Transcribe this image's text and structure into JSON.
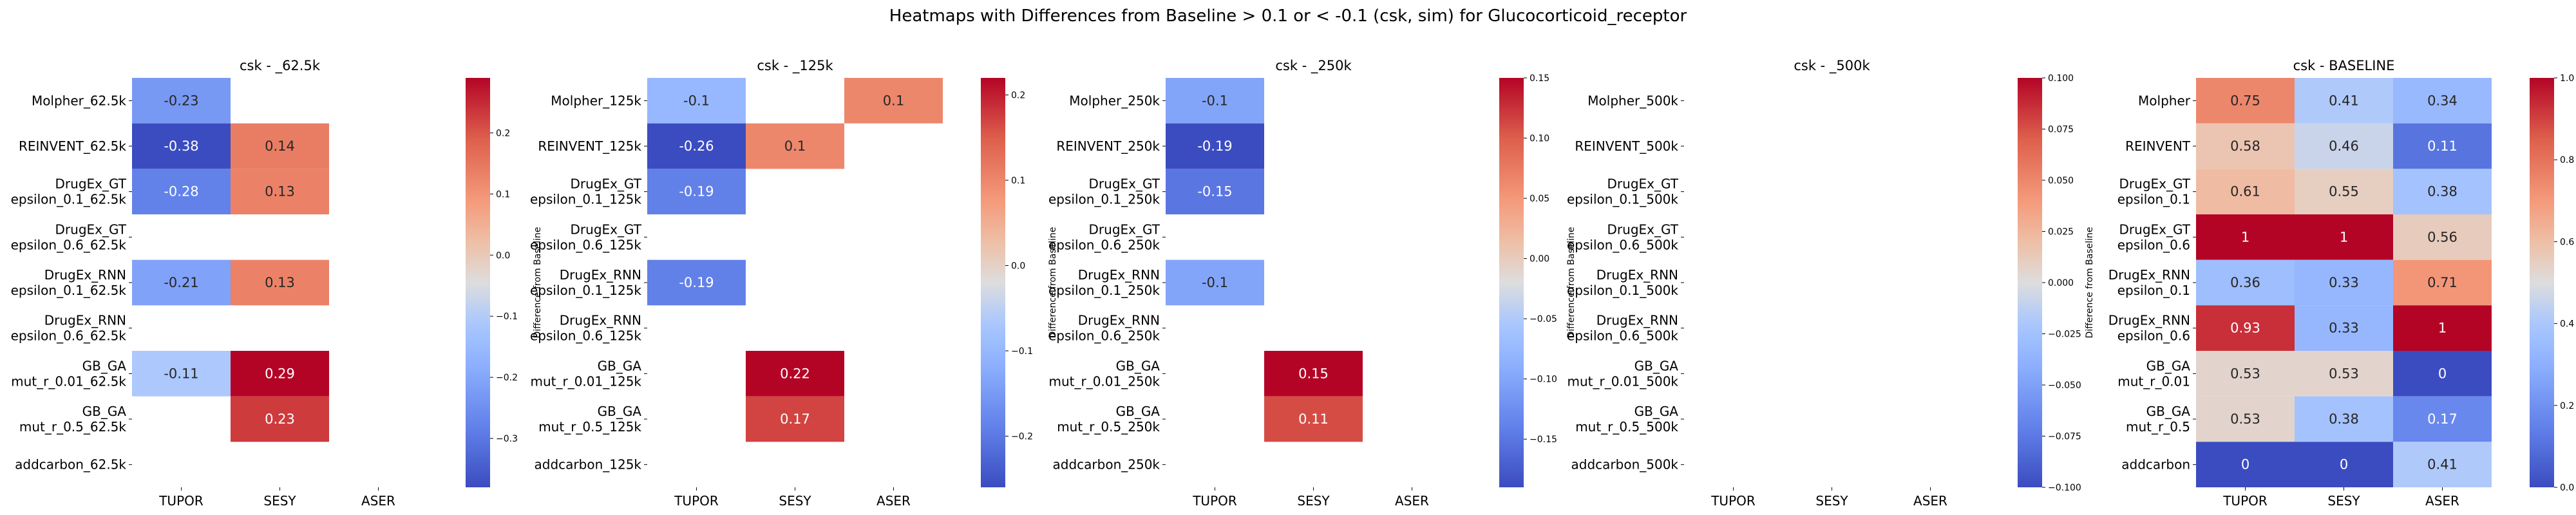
{
  "title": "Heatmaps with Differences from Baseline > 0.1 or < -0.1 (csk, sim) for Glucocorticoid_receptor",
  "colorbar_label": "Difference from Baseline",
  "colormap": "coolwarm",
  "colors": {
    "nan_background": "#ffffff",
    "low": "#3b4cc0",
    "mid": "#dddddd",
    "high": "#b40426"
  },
  "chart_data": [
    {
      "type": "heatmap",
      "title": "csk - _62.5k",
      "columns": [
        "TUPOR",
        "SESY",
        "ASER"
      ],
      "rows": [
        [
          "Molpher_62.5k"
        ],
        [
          "REINVENT_62.5k"
        ],
        [
          "DrugEx_GT",
          "epsilon_0.1_62.5k"
        ],
        [
          "DrugEx_GT",
          "epsilon_0.6_62.5k"
        ],
        [
          "DrugEx_RNN",
          "epsilon_0.1_62.5k"
        ],
        [
          "DrugEx_RNN",
          "epsilon_0.6_62.5k"
        ],
        [
          "GB_GA",
          "mut_r_0.01_62.5k"
        ],
        [
          "GB_GA",
          "mut_r_0.5_62.5k"
        ],
        [
          "addcarbon_62.5k"
        ]
      ],
      "values": [
        [
          -0.23,
          null,
          null
        ],
        [
          -0.38,
          0.14,
          null
        ],
        [
          -0.28,
          0.13,
          null
        ],
        [
          null,
          null,
          null
        ],
        [
          -0.21,
          0.13,
          null
        ],
        [
          null,
          null,
          null
        ],
        [
          -0.11,
          0.29,
          null
        ],
        [
          null,
          0.23,
          null
        ],
        [
          null,
          null,
          null
        ]
      ],
      "vmin": -0.38,
      "vmax": 0.29,
      "colorbar_ticks": [
        -0.3,
        -0.2,
        -0.1,
        0.0,
        0.1,
        0.2
      ],
      "colorbar_tick_labels": [
        "−0.3",
        "−0.2",
        "−0.1",
        "0.0",
        "0.1",
        "0.2"
      ]
    },
    {
      "type": "heatmap",
      "title": "csk - _125k",
      "columns": [
        "TUPOR",
        "SESY",
        "ASER"
      ],
      "rows": [
        [
          "Molpher_125k"
        ],
        [
          "REINVENT_125k"
        ],
        [
          "DrugEx_GT",
          "epsilon_0.1_125k"
        ],
        [
          "DrugEx_GT",
          "epsilon_0.6_125k"
        ],
        [
          "DrugEx_RNN",
          "epsilon_0.1_125k"
        ],
        [
          "DrugEx_RNN",
          "epsilon_0.6_125k"
        ],
        [
          "GB_GA",
          "mut_r_0.01_125k"
        ],
        [
          "GB_GA",
          "mut_r_0.5_125k"
        ],
        [
          "addcarbon_125k"
        ]
      ],
      "values": [
        [
          -0.1,
          null,
          0.1
        ],
        [
          -0.26,
          0.1,
          null
        ],
        [
          -0.19,
          null,
          null
        ],
        [
          null,
          null,
          null
        ],
        [
          -0.19,
          null,
          null
        ],
        [
          null,
          null,
          null
        ],
        [
          null,
          0.22,
          null
        ],
        [
          null,
          0.17,
          null
        ],
        [
          null,
          null,
          null
        ]
      ],
      "vmin": -0.26,
      "vmax": 0.22,
      "colorbar_ticks": [
        -0.2,
        -0.1,
        0.0,
        0.1,
        0.2
      ],
      "colorbar_tick_labels": [
        "−0.2",
        "−0.1",
        "0.0",
        "0.1",
        "0.2"
      ]
    },
    {
      "type": "heatmap",
      "title": "csk - _250k",
      "columns": [
        "TUPOR",
        "SESY",
        "ASER"
      ],
      "rows": [
        [
          "Molpher_250k"
        ],
        [
          "REINVENT_250k"
        ],
        [
          "DrugEx_GT",
          "epsilon_0.1_250k"
        ],
        [
          "DrugEx_GT",
          "epsilon_0.6_250k"
        ],
        [
          "DrugEx_RNN",
          "epsilon_0.1_250k"
        ],
        [
          "DrugEx_RNN",
          "epsilon_0.6_250k"
        ],
        [
          "GB_GA",
          "mut_r_0.01_250k"
        ],
        [
          "GB_GA",
          "mut_r_0.5_250k"
        ],
        [
          "addcarbon_250k"
        ]
      ],
      "values": [
        [
          -0.1,
          null,
          null
        ],
        [
          -0.19,
          null,
          null
        ],
        [
          -0.15,
          null,
          null
        ],
        [
          null,
          null,
          null
        ],
        [
          -0.1,
          null,
          null
        ],
        [
          null,
          null,
          null
        ],
        [
          null,
          0.15,
          null
        ],
        [
          null,
          0.11,
          null
        ],
        [
          null,
          null,
          null
        ]
      ],
      "vmin": -0.19,
      "vmax": 0.15,
      "colorbar_ticks": [
        -0.15,
        -0.1,
        -0.05,
        0.0,
        0.05,
        0.1,
        0.15
      ],
      "colorbar_tick_labels": [
        "−0.15",
        "−0.10",
        "−0.05",
        "0.00",
        "0.05",
        "0.10",
        "0.15"
      ]
    },
    {
      "type": "heatmap",
      "title": "csk - _500k",
      "columns": [
        "TUPOR",
        "SESY",
        "ASER"
      ],
      "rows": [
        [
          "Molpher_500k"
        ],
        [
          "REINVENT_500k"
        ],
        [
          "DrugEx_GT",
          "epsilon_0.1_500k"
        ],
        [
          "DrugEx_GT",
          "epsilon_0.6_500k"
        ],
        [
          "DrugEx_RNN",
          "epsilon_0.1_500k"
        ],
        [
          "DrugEx_RNN",
          "epsilon_0.6_500k"
        ],
        [
          "GB_GA",
          "mut_r_0.01_500k"
        ],
        [
          "GB_GA",
          "mut_r_0.5_500k"
        ],
        [
          "addcarbon_500k"
        ]
      ],
      "values": [
        [
          null,
          null,
          null
        ],
        [
          null,
          null,
          null
        ],
        [
          null,
          null,
          null
        ],
        [
          null,
          null,
          null
        ],
        [
          null,
          null,
          null
        ],
        [
          null,
          null,
          null
        ],
        [
          null,
          null,
          null
        ],
        [
          null,
          null,
          null
        ],
        [
          null,
          null,
          null
        ]
      ],
      "vmin": -0.1,
      "vmax": 0.1,
      "colorbar_ticks": [
        -0.1,
        -0.075,
        -0.05,
        -0.025,
        0.0,
        0.025,
        0.05,
        0.075,
        0.1
      ],
      "colorbar_tick_labels": [
        "−0.100",
        "−0.075",
        "−0.050",
        "−0.025",
        "0.000",
        "0.025",
        "0.050",
        "0.075",
        "0.100"
      ]
    },
    {
      "type": "heatmap",
      "title": "csk - BASELINE",
      "columns": [
        "TUPOR",
        "SESY",
        "ASER"
      ],
      "rows": [
        [
          "Molpher"
        ],
        [
          "REINVENT"
        ],
        [
          "DrugEx_GT",
          "epsilon_0.1"
        ],
        [
          "DrugEx_GT",
          "epsilon_0.6"
        ],
        [
          "DrugEx_RNN",
          "epsilon_0.1"
        ],
        [
          "DrugEx_RNN",
          "epsilon_0.6"
        ],
        [
          "GB_GA",
          "mut_r_0.01"
        ],
        [
          "GB_GA",
          "mut_r_0.5"
        ],
        [
          "addcarbon"
        ]
      ],
      "values": [
        [
          0.75,
          0.41,
          0.34
        ],
        [
          0.58,
          0.46,
          0.11
        ],
        [
          0.61,
          0.55,
          0.38
        ],
        [
          1,
          1,
          0.56
        ],
        [
          0.36,
          0.33,
          0.71
        ],
        [
          0.93,
          0.33,
          1
        ],
        [
          0.53,
          0.53,
          0
        ],
        [
          0.53,
          0.38,
          0.17
        ],
        [
          0,
          0,
          0.41
        ]
      ],
      "vmin": 0.0,
      "vmax": 1.0,
      "colorbar_ticks": [
        0.0,
        0.2,
        0.4,
        0.6,
        0.8,
        1.0
      ],
      "colorbar_tick_labels": [
        "0.0",
        "0.2",
        "0.4",
        "0.6",
        "0.8",
        "1.0"
      ]
    }
  ]
}
